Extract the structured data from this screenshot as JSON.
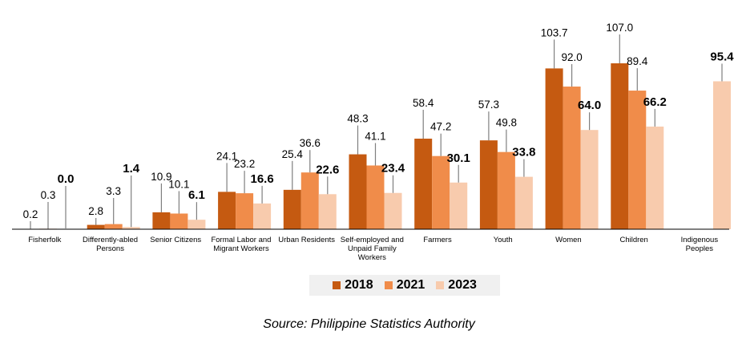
{
  "chart_data": {
    "type": "bar",
    "categories": [
      "Fisherfolk",
      "Differently-abled Persons",
      "Senior Citizens",
      "Formal Labor and Migrant Workers",
      "Urban Residents",
      "Self-employed and Unpaid Family Workers",
      "Farmers",
      "Youth",
      "Women",
      "Children",
      "Indigenous Peoples"
    ],
    "series": [
      {
        "name": "2018",
        "color": "#c55a11",
        "values": [
          0.2,
          2.8,
          10.9,
          24.1,
          25.4,
          48.3,
          58.4,
          57.3,
          103.7,
          107.0,
          null
        ]
      },
      {
        "name": "2021",
        "color": "#f08c4a",
        "values": [
          0.3,
          3.3,
          10.1,
          23.2,
          36.6,
          41.1,
          47.2,
          49.8,
          92.0,
          89.4,
          null
        ]
      },
      {
        "name": "2023",
        "color": "#f8cbad",
        "values": [
          0.0,
          1.4,
          6.1,
          16.6,
          22.6,
          23.4,
          30.1,
          33.8,
          64.0,
          66.2,
          95.4
        ]
      }
    ],
    "value_labels": [
      [
        "0.2",
        "2.8",
        "10.9",
        "24.1",
        "25.4",
        "48.3",
        "58.4",
        "57.3",
        "103.7",
        "107.0",
        ""
      ],
      [
        "0.3",
        "3.3",
        "10.1",
        "23.2",
        "36.6",
        "41.1",
        "47.2",
        "49.8",
        "92.0",
        "89.4",
        ""
      ],
      [
        "0.0",
        "1.4",
        "6.1",
        "16.6",
        "22.6",
        "23.4",
        "30.1",
        "33.8",
        "64.0",
        "66.2",
        "95.4"
      ]
    ],
    "ylim": [
      0,
      115
    ],
    "legend": "bottom-center",
    "grid": false
  },
  "legend": {
    "items": [
      "2018",
      "2021",
      "2023"
    ]
  },
  "source": "Source: Philippine Statistics Authority"
}
